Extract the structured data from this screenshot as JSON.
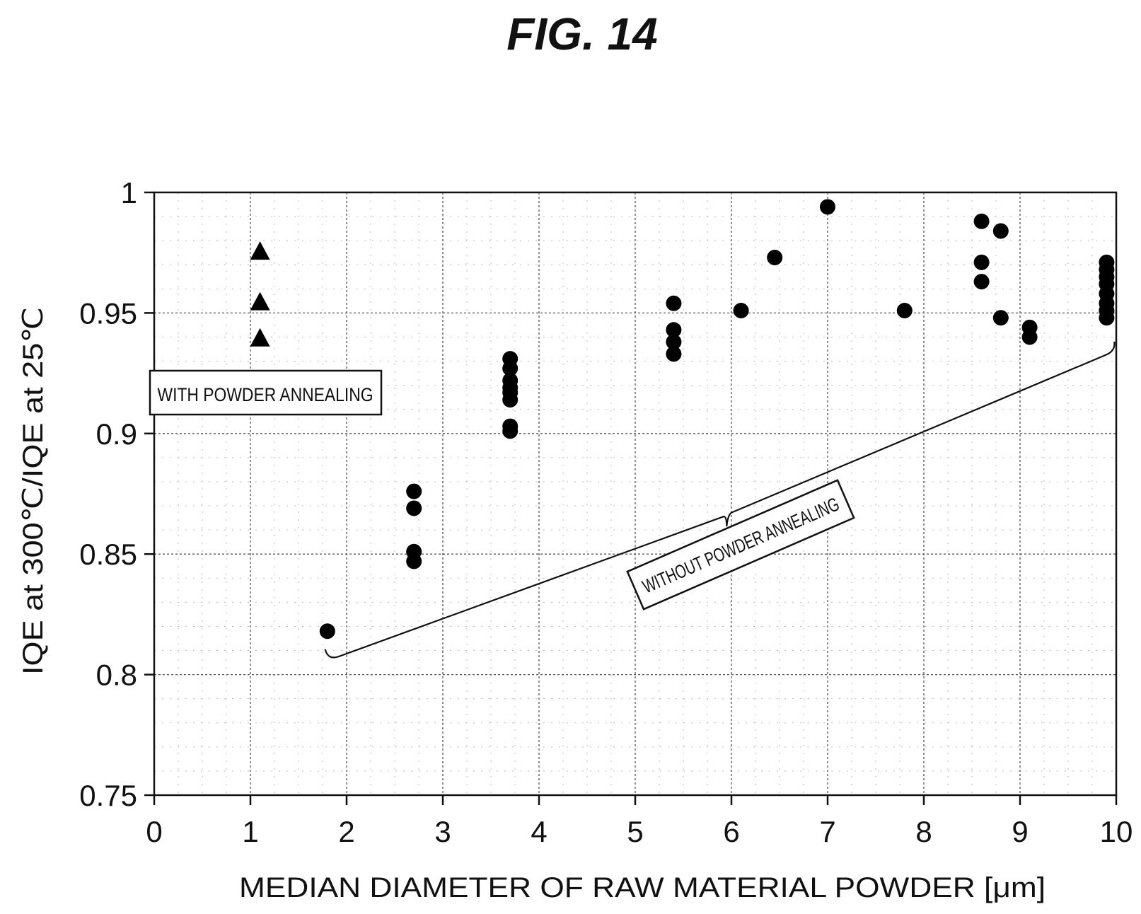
{
  "figure_title": "FIG. 14",
  "chart_data": {
    "type": "scatter",
    "title": "",
    "xlabel": "MEDIAN DIAMETER OF RAW MATERIAL POWDER [μm]",
    "ylabel": "IQE at 300℃/IQE at 25℃",
    "xlim": [
      0,
      10
    ],
    "ylim": [
      0.75,
      1.0
    ],
    "x_ticks": [
      "0",
      "1",
      "2",
      "3",
      "4",
      "5",
      "6",
      "7",
      "8",
      "9",
      "10"
    ],
    "y_ticks": [
      "0.75",
      "0.8",
      "0.85",
      "0.9",
      "0.95",
      "1"
    ],
    "grid": true,
    "legend": "none",
    "series": [
      {
        "name": "WITH POWDER ANNEALING",
        "marker": "triangle",
        "color": "#000000",
        "points": [
          [
            1.1,
            0.975
          ],
          [
            1.1,
            0.954
          ],
          [
            1.1,
            0.939
          ]
        ]
      },
      {
        "name": "WITHOUT POWDER ANNEALING",
        "marker": "circle",
        "color": "#000000",
        "points": [
          [
            1.8,
            0.818
          ],
          [
            2.7,
            0.876
          ],
          [
            2.7,
            0.869
          ],
          [
            2.7,
            0.851
          ],
          [
            2.7,
            0.847
          ],
          [
            3.7,
            0.931
          ],
          [
            3.7,
            0.927
          ],
          [
            3.7,
            0.922
          ],
          [
            3.7,
            0.919
          ],
          [
            3.7,
            0.917
          ],
          [
            3.7,
            0.914
          ],
          [
            3.7,
            0.903
          ],
          [
            3.7,
            0.901
          ],
          [
            5.4,
            0.954
          ],
          [
            5.4,
            0.943
          ],
          [
            5.4,
            0.938
          ],
          [
            5.4,
            0.933
          ],
          [
            6.1,
            0.951
          ],
          [
            6.45,
            0.973
          ],
          [
            7.0,
            0.994
          ],
          [
            7.8,
            0.951
          ],
          [
            8.6,
            0.988
          ],
          [
            8.6,
            0.971
          ],
          [
            8.6,
            0.963
          ],
          [
            8.8,
            0.984
          ],
          [
            8.8,
            0.948
          ],
          [
            9.1,
            0.944
          ],
          [
            9.1,
            0.94
          ],
          [
            9.9,
            0.971
          ],
          [
            9.9,
            0.968
          ],
          [
            9.9,
            0.965
          ],
          [
            9.9,
            0.962
          ],
          [
            9.9,
            0.958
          ],
          [
            9.9,
            0.954
          ],
          [
            9.9,
            0.951
          ],
          [
            9.9,
            0.948
          ]
        ]
      }
    ]
  },
  "annotations": {
    "with_annealing_label": "WITH POWDER ANNEALING",
    "without_annealing_label": "WITHOUT POWDER ANNEALING"
  }
}
